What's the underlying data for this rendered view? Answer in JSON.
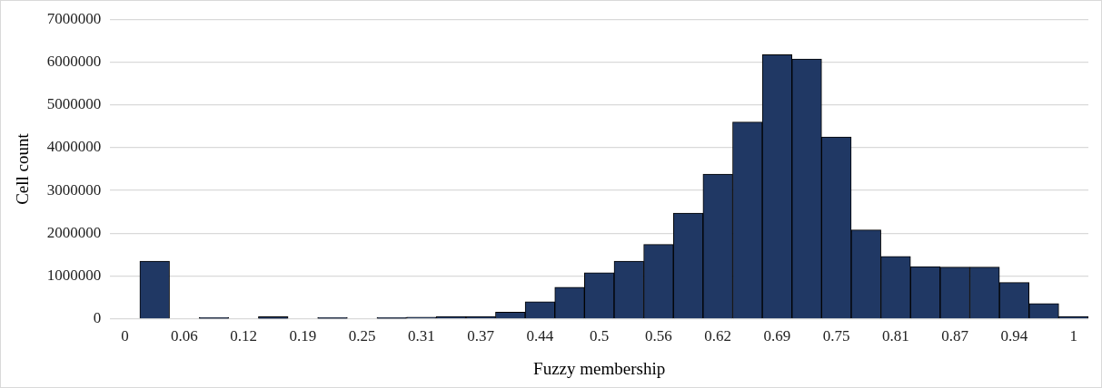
{
  "chart_data": {
    "type": "bar",
    "xlabel": "Fuzzy membership",
    "ylabel": "Cell count",
    "categories": [
      "0",
      null,
      "0.06",
      null,
      "0.12",
      null,
      "0.19",
      null,
      "0.25",
      null,
      "0.31",
      null,
      "0.37",
      null,
      "0.44",
      null,
      "0.5",
      null,
      "0.56",
      null,
      "0.62",
      null,
      "0.69",
      null,
      "0.75",
      null,
      "0.81",
      null,
      "0.87",
      null,
      "0.94",
      null,
      "1"
    ],
    "values": [
      0,
      1350000,
      null,
      30000,
      null,
      50000,
      null,
      30000,
      null,
      30000,
      40000,
      60000,
      60000,
      160000,
      400000,
      740000,
      1080000,
      1350000,
      1740000,
      2470000,
      3380000,
      4600000,
      6170000,
      6070000,
      4250000,
      2080000,
      1460000,
      1220000,
      1210000,
      1210000,
      850000,
      360000,
      60000
    ],
    "color": "#203864",
    "ylim": [
      0,
      7000000
    ],
    "yticks": [
      0,
      1000000,
      2000000,
      3000000,
      4000000,
      5000000,
      6000000,
      7000000
    ],
    "grid": "y",
    "legend": false
  }
}
